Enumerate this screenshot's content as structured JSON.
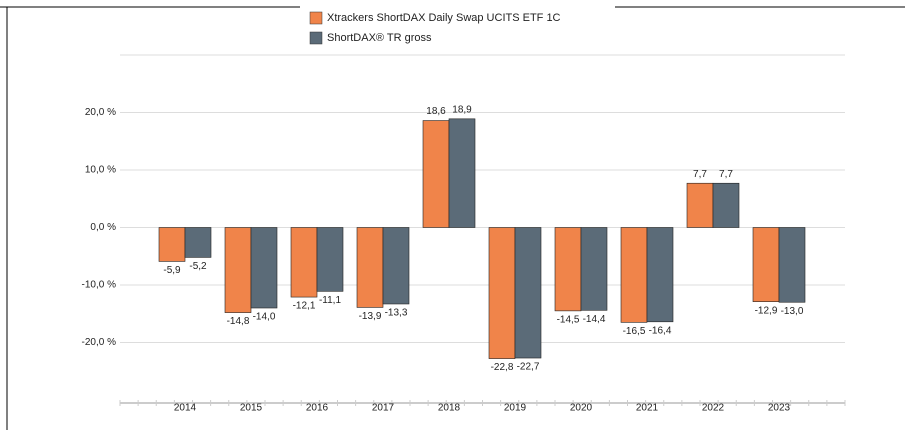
{
  "chart_data": {
    "type": "bar",
    "categories": [
      "2014",
      "2015",
      "2016",
      "2017",
      "2018",
      "2019",
      "2020",
      "2021",
      "2022",
      "2023"
    ],
    "series": [
      {
        "name": "Xtrackers ShortDAX Daily Swap UCITS ETF 1C",
        "color": "#f0844a",
        "values": [
          -5.9,
          -14.8,
          -12.1,
          -13.9,
          18.6,
          -22.8,
          -14.5,
          -16.5,
          7.7,
          -12.9
        ],
        "value_labels": [
          "-5,9",
          "-14,8",
          "-12,1",
          "-13,9",
          "18,6",
          "-22,8",
          "-14,5",
          "-16,5",
          "7,7",
          "-12,9"
        ]
      },
      {
        "name": "ShortDAX® TR gross",
        "color": "#5b6b78",
        "values": [
          -5.2,
          -14.0,
          -11.1,
          -13.3,
          18.9,
          -22.7,
          -14.4,
          -16.4,
          7.7,
          -13.0
        ],
        "value_labels": [
          "-5,2",
          "-14,0",
          "-11,1",
          "-13,3",
          "18,9",
          "-22,7",
          "-14,4",
          "-16,4",
          "7,7",
          "-13,0"
        ]
      }
    ],
    "ylim": [
      -30,
      30
    ],
    "yticks": [
      {
        "value": -20,
        "label": "-20,0 %"
      },
      {
        "value": -10,
        "label": "-10,0 %"
      },
      {
        "value": 0,
        "label": "0,0 %"
      },
      {
        "value": 10,
        "label": "10,0 %"
      },
      {
        "value": 20,
        "label": "20,0 %"
      }
    ],
    "grid": true
  }
}
